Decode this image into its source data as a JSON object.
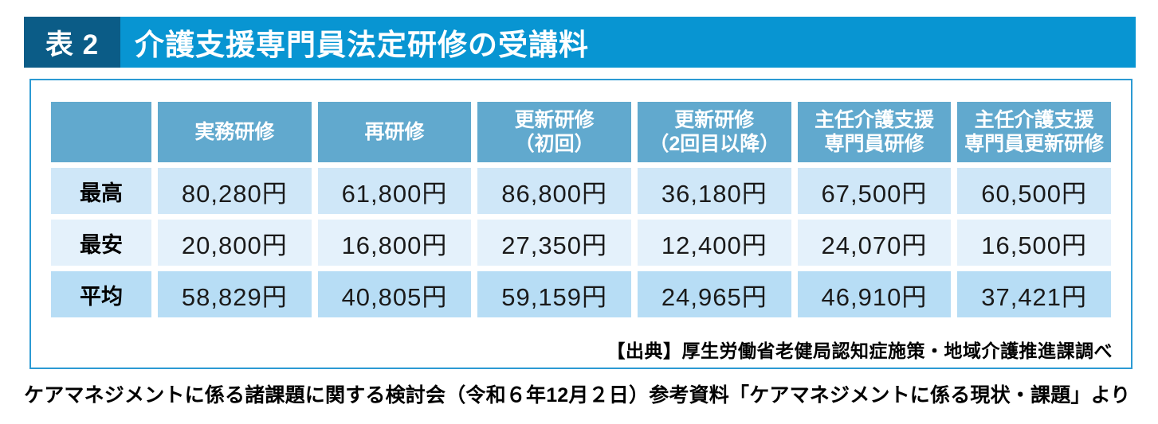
{
  "title_tag": "表 2",
  "title_text": "介護支援専門員法定研修の受講料",
  "chart_data": {
    "type": "table",
    "title": "介護支援専門員法定研修の受講料",
    "column_headers": [
      [
        "実務研修"
      ],
      [
        "再研修"
      ],
      [
        "更新研修",
        "（初回）"
      ],
      [
        "更新研修",
        "（2回目以降）"
      ],
      [
        "主任介護支援",
        "専門員研修"
      ],
      [
        "主任介護支援",
        "専門員更新研修"
      ]
    ],
    "row_headers": [
      "最高",
      "最安",
      "平均"
    ],
    "values": [
      [
        "80,280円",
        "61,800円",
        "86,800円",
        "36,180円",
        "67,500円",
        "60,500円"
      ],
      [
        "20,800円",
        "16,800円",
        "27,350円",
        "12,400円",
        "24,070円",
        "16,500円"
      ],
      [
        "58,829円",
        "40,805円",
        "59,159円",
        "24,965円",
        "46,910円",
        "37,421円"
      ]
    ],
    "values_numeric": [
      [
        80280,
        61800,
        86800,
        36180,
        67500,
        60500
      ],
      [
        20800,
        16800,
        27350,
        12400,
        24070,
        16500
      ],
      [
        58829,
        40805,
        59159,
        24965,
        46910,
        37421
      ]
    ],
    "unit": "円",
    "source": "【出典】厚生労働省老健局認知症施策・地域介護推進課調べ"
  },
  "caption": "ケアマネジメントに係る諸課題に関する検討会（令和６年12月２日）参考資料「ケアマネジメントに係る現状・課題」より",
  "colors": {
    "title_tag_bg": "#0b5c87",
    "title_bar_bg": "#0895d2",
    "header_cell_bg": "#61a9ce",
    "row_bg_0": "#cfe7f8",
    "row_bg_1": "#e4f1fb",
    "row_bg_2": "#b7ddf5",
    "box_border": "#2c9ad3"
  }
}
